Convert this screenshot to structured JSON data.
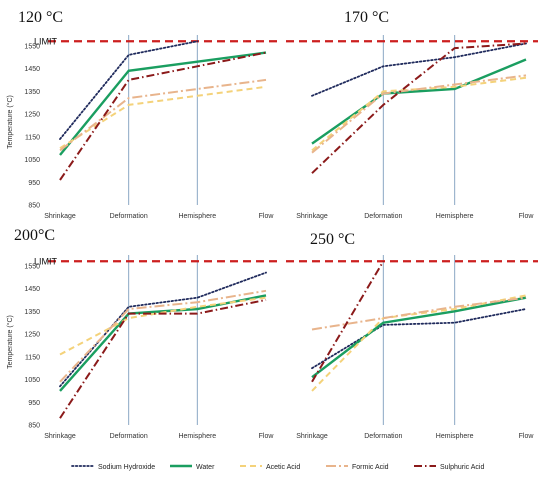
{
  "chart_data": [
    {
      "type": "line",
      "title": "120 °C",
      "categories": [
        "Shrinkage",
        "Deformation",
        "Hemisphere",
        "Flow"
      ],
      "ylabel": "Temperature (°C)",
      "ylim": [
        850,
        1580
      ],
      "yticks": [
        850,
        950,
        1050,
        1150,
        1250,
        1350,
        1450,
        1550
      ],
      "limit": {
        "label": "LIMIT",
        "value": 1570
      },
      "series": [
        {
          "name": "Sodium Hydroxide",
          "values": [
            1140,
            1510,
            1570,
            null
          ]
        },
        {
          "name": "Water",
          "values": [
            1070,
            1440,
            1480,
            1520
          ]
        },
        {
          "name": "Acetic Acid",
          "values": [
            1100,
            1290,
            1330,
            1370
          ]
        },
        {
          "name": "Formic Acid",
          "values": [
            1090,
            1320,
            1360,
            1400
          ]
        },
        {
          "name": "Sulphuric Acid",
          "values": [
            960,
            1400,
            1460,
            1520
          ]
        }
      ]
    },
    {
      "type": "line",
      "title": "170 °C",
      "categories": [
        "Shrinkage",
        "Deformation",
        "Hemisphere",
        "Flow"
      ],
      "ylabel": "",
      "ylim": [
        850,
        1580
      ],
      "yticks": [],
      "limit": {
        "label": "",
        "value": 1570
      },
      "series": [
        {
          "name": "Sodium Hydroxide",
          "values": [
            1330,
            1460,
            1500,
            1560
          ]
        },
        {
          "name": "Water",
          "values": [
            1120,
            1340,
            1360,
            1490
          ]
        },
        {
          "name": "Acetic Acid",
          "values": [
            1090,
            1350,
            1370,
            1410
          ]
        },
        {
          "name": "Formic Acid",
          "values": [
            1080,
            1340,
            1380,
            1420
          ]
        },
        {
          "name": "Sulphuric Acid",
          "values": [
            990,
            1290,
            1540,
            1560
          ]
        }
      ]
    },
    {
      "type": "line",
      "title": "200°C",
      "categories": [
        "Shrinkage",
        "Deformation",
        "Hemisphere",
        "Flow"
      ],
      "ylabel": "Temperature (°C)",
      "ylim": [
        850,
        1580
      ],
      "yticks": [
        850,
        950,
        1050,
        1150,
        1250,
        1350,
        1450,
        1550
      ],
      "limit": {
        "label": "LIMIT",
        "value": 1570
      },
      "series": [
        {
          "name": "Sodium Hydroxide",
          "values": [
            1020,
            1370,
            1410,
            1520
          ]
        },
        {
          "name": "Water",
          "values": [
            1000,
            1340,
            1360,
            1420
          ]
        },
        {
          "name": "Acetic Acid",
          "values": [
            1160,
            1320,
            1370,
            1410
          ]
        },
        {
          "name": "Formic Acid",
          "values": [
            1040,
            1360,
            1390,
            1440
          ]
        },
        {
          "name": "Sulphuric Acid",
          "values": [
            880,
            1340,
            1340,
            1400
          ]
        }
      ]
    },
    {
      "type": "line",
      "title": "250 °C",
      "categories": [
        "Shrinkage",
        "Deformation",
        "Hemisphere",
        "Flow"
      ],
      "ylabel": "",
      "ylim": [
        850,
        1580
      ],
      "yticks": [],
      "limit": {
        "label": "",
        "value": 1570
      },
      "series": [
        {
          "name": "Sodium Hydroxide",
          "values": [
            1100,
            1290,
            1300,
            1360
          ]
        },
        {
          "name": "Water",
          "values": [
            1060,
            1300,
            1350,
            1410
          ]
        },
        {
          "name": "Acetic Acid",
          "values": [
            1000,
            1320,
            1360,
            1420
          ]
        },
        {
          "name": "Formic Acid",
          "values": [
            1270,
            1320,
            1370,
            1410
          ]
        },
        {
          "name": "Sulphuric Acid",
          "values": [
            1040,
            1570,
            null,
            null
          ]
        }
      ]
    }
  ],
  "legend": [
    {
      "name": "Sodium Hydroxide",
      "color": "#1f2a5c",
      "dash": "dotted"
    },
    {
      "name": "Water",
      "color": "#1a9e60",
      "dash": "solid"
    },
    {
      "name": "Acetic Acid",
      "color": "#f4d27a",
      "dash": "dashed"
    },
    {
      "name": "Formic Acid",
      "color": "#e8b48c",
      "dash": "long-dash-dot"
    },
    {
      "name": "Sulphuric Acid",
      "color": "#8b1a1a",
      "dash": "dash-dot"
    }
  ],
  "colors": {
    "limit": "#cc1f1f",
    "vline": "#8aa8c4",
    "axis": "#bbbbbb"
  }
}
